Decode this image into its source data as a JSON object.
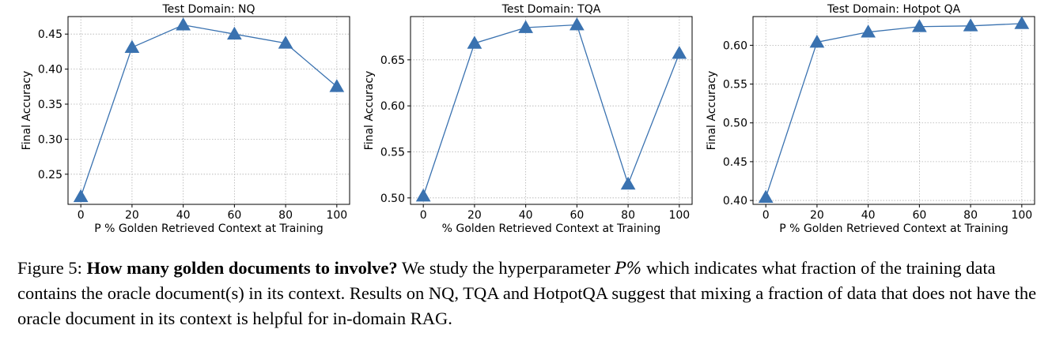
{
  "chart_data": [
    {
      "type": "line",
      "title": "Test Domain: NQ",
      "xlabel": "P % Golden Retrieved Context at Training",
      "ylabel": "Final Accuracy",
      "x": [
        0,
        20,
        40,
        60,
        80,
        100
      ],
      "values": [
        0.218,
        0.431,
        0.463,
        0.45,
        0.437,
        0.375
      ],
      "xticks": [
        "0",
        "20",
        "40",
        "60",
        "80",
        "100"
      ],
      "yticks": [
        "0.25",
        "0.30",
        "0.35",
        "0.40",
        "0.45"
      ],
      "ytick_values": [
        0.25,
        0.3,
        0.35,
        0.4,
        0.45
      ],
      "xlim": [
        -5,
        105
      ],
      "ylim": [
        0.207,
        0.475
      ],
      "grid": true,
      "marker": "triangle",
      "color": "#3a72b0"
    },
    {
      "type": "line",
      "title": "Test Domain: TQA",
      "xlabel": "% Golden Retrieved Context at Training",
      "ylabel": "Final Accuracy",
      "x": [
        0,
        20,
        40,
        60,
        80,
        100
      ],
      "values": [
        0.502,
        0.668,
        0.685,
        0.688,
        0.515,
        0.657
      ],
      "xticks": [
        "0",
        "20",
        "40",
        "60",
        "80",
        "100"
      ],
      "yticks": [
        "0.50",
        "0.55",
        "0.60",
        "0.65"
      ],
      "ytick_values": [
        0.5,
        0.55,
        0.6,
        0.65
      ],
      "xlim": [
        -5,
        105
      ],
      "ylim": [
        0.493,
        0.697
      ],
      "grid": true,
      "marker": "triangle",
      "color": "#3a72b0"
    },
    {
      "type": "line",
      "title": "Test Domain: Hotpot QA",
      "xlabel": "P % Golden Retrieved Context at Training",
      "ylabel": "Final Accuracy",
      "x": [
        0,
        20,
        40,
        60,
        80,
        100
      ],
      "values": [
        0.404,
        0.604,
        0.617,
        0.624,
        0.625,
        0.628
      ],
      "xticks": [
        "0",
        "20",
        "40",
        "60",
        "80",
        "100"
      ],
      "yticks": [
        "0.40",
        "0.45",
        "0.50",
        "0.55",
        "0.60"
      ],
      "ytick_values": [
        0.4,
        0.45,
        0.5,
        0.55,
        0.6
      ],
      "xlim": [
        -5,
        105
      ],
      "ylim": [
        0.395,
        0.637
      ],
      "grid": true,
      "marker": "triangle",
      "color": "#3a72b0"
    }
  ],
  "caption": {
    "label": "Figure 5:",
    "bold": "How many golden documents to involve?",
    "text_before_symbol": "We study the hyperparameter",
    "symbol": "P%",
    "text_after_symbol": "which indicates what fraction of the training data contains the oracle document(s) in its context. Results on NQ, TQA and HotpotQA suggest that mixing a fraction of data that does not have the oracle document in its context is helpful for in-domain RAG."
  }
}
